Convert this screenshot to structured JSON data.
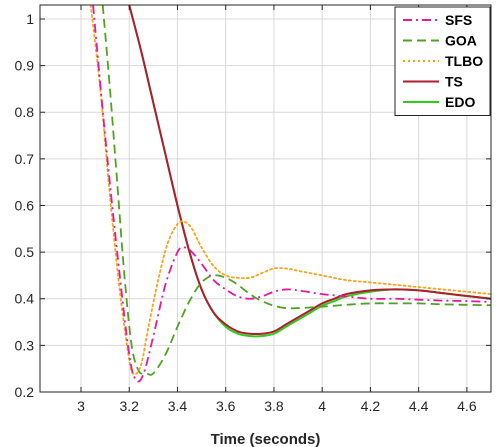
{
  "chart_data": {
    "type": "line",
    "title": "",
    "xlabel": "Time (seconds)",
    "ylabel": "",
    "xlim": [
      2.83,
      4.7
    ],
    "ylim": [
      0.2,
      1.03
    ],
    "xticks": [
      3,
      3.2,
      3.4,
      3.6,
      3.8,
      4,
      4.2,
      4.4,
      4.6
    ],
    "xtick_labels": [
      "3",
      "3.2",
      "3.4",
      "3.6",
      "3.8",
      "4",
      "4.2",
      "4.4",
      "4.6"
    ],
    "yticks": [
      0.2,
      0.3,
      0.4,
      0.5,
      0.6,
      0.7,
      0.8,
      0.9,
      1
    ],
    "ytick_labels": [
      "0.2",
      "0.3",
      "0.4",
      "0.5",
      "0.6",
      "0.7",
      "0.8",
      "0.9",
      "1"
    ],
    "grid": true,
    "legend_position": "top-right",
    "series": [
      {
        "name": "SFS",
        "color": "#e6199e",
        "dash": "dash-dot",
        "x": [
          3.05,
          3.1,
          3.15,
          3.2,
          3.23,
          3.26,
          3.3,
          3.35,
          3.4,
          3.43,
          3.46,
          3.5,
          3.55,
          3.6,
          3.65,
          3.7,
          3.75,
          3.8,
          3.85,
          3.9,
          4.0,
          4.1,
          4.2,
          4.3,
          4.4,
          4.5,
          4.6,
          4.7
        ],
        "y": [
          1.03,
          0.75,
          0.5,
          0.28,
          0.225,
          0.24,
          0.32,
          0.43,
          0.5,
          0.51,
          0.5,
          0.475,
          0.44,
          0.42,
          0.405,
          0.4,
          0.405,
          0.415,
          0.42,
          0.418,
          0.41,
          0.405,
          0.4,
          0.4,
          0.398,
          0.396,
          0.395,
          0.393
        ]
      },
      {
        "name": "GOA",
        "color": "#4ea322",
        "dash": "dash",
        "x": [
          3.09,
          3.12,
          3.15,
          3.18,
          3.21,
          3.24,
          3.27,
          3.3,
          3.35,
          3.4,
          3.45,
          3.5,
          3.55,
          3.6,
          3.65,
          3.7,
          3.75,
          3.8,
          3.85,
          3.9,
          4.0,
          4.1,
          4.2,
          4.3,
          4.4,
          4.5,
          4.6,
          4.7
        ],
        "y": [
          1.03,
          0.85,
          0.65,
          0.45,
          0.3,
          0.245,
          0.24,
          0.24,
          0.28,
          0.34,
          0.395,
          0.435,
          0.45,
          0.445,
          0.43,
          0.41,
          0.395,
          0.385,
          0.38,
          0.38,
          0.383,
          0.387,
          0.39,
          0.39,
          0.39,
          0.388,
          0.387,
          0.386
        ]
      },
      {
        "name": "TLBO",
        "color": "#f5a41c",
        "dash": "dot",
        "x": [
          3.04,
          3.08,
          3.12,
          3.16,
          3.2,
          3.22,
          3.25,
          3.28,
          3.32,
          3.36,
          3.4,
          3.43,
          3.46,
          3.5,
          3.55,
          3.6,
          3.65,
          3.7,
          3.75,
          3.8,
          3.85,
          3.9,
          4.0,
          4.1,
          4.2,
          4.3,
          4.4,
          4.5,
          4.6,
          4.7
        ],
        "y": [
          1.03,
          0.85,
          0.62,
          0.42,
          0.27,
          0.238,
          0.26,
          0.34,
          0.44,
          0.52,
          0.56,
          0.565,
          0.55,
          0.51,
          0.47,
          0.45,
          0.445,
          0.445,
          0.455,
          0.465,
          0.465,
          0.46,
          0.45,
          0.44,
          0.435,
          0.43,
          0.425,
          0.42,
          0.415,
          0.41
        ]
      },
      {
        "name": "TS",
        "color": "#b01c30",
        "dash": "solid",
        "x": [
          3.2,
          3.25,
          3.3,
          3.35,
          3.4,
          3.45,
          3.5,
          3.55,
          3.6,
          3.65,
          3.7,
          3.75,
          3.8,
          3.85,
          3.9,
          3.95,
          4.0,
          4.05,
          4.1,
          4.2,
          4.3,
          4.4,
          4.5,
          4.6,
          4.7
        ],
        "y": [
          1.03,
          0.93,
          0.82,
          0.71,
          0.6,
          0.5,
          0.42,
          0.37,
          0.345,
          0.33,
          0.325,
          0.325,
          0.33,
          0.345,
          0.36,
          0.375,
          0.39,
          0.4,
          0.41,
          0.418,
          0.42,
          0.418,
          0.412,
          0.406,
          0.4
        ]
      },
      {
        "name": "EDO",
        "color": "#2ecc1e",
        "dash": "solid",
        "x": [
          3.2,
          3.25,
          3.3,
          3.35,
          3.4,
          3.45,
          3.5,
          3.55,
          3.6,
          3.65,
          3.7,
          3.75,
          3.8,
          3.85,
          3.9,
          3.95,
          4.0,
          4.05,
          4.1,
          4.2,
          4.3,
          4.4,
          4.5,
          4.6,
          4.7
        ],
        "y": [
          1.03,
          0.93,
          0.82,
          0.71,
          0.6,
          0.5,
          0.42,
          0.37,
          0.34,
          0.325,
          0.32,
          0.32,
          0.325,
          0.34,
          0.355,
          0.37,
          0.385,
          0.395,
          0.405,
          0.415,
          0.42,
          0.418,
          0.412,
          0.406,
          0.4
        ]
      }
    ]
  }
}
